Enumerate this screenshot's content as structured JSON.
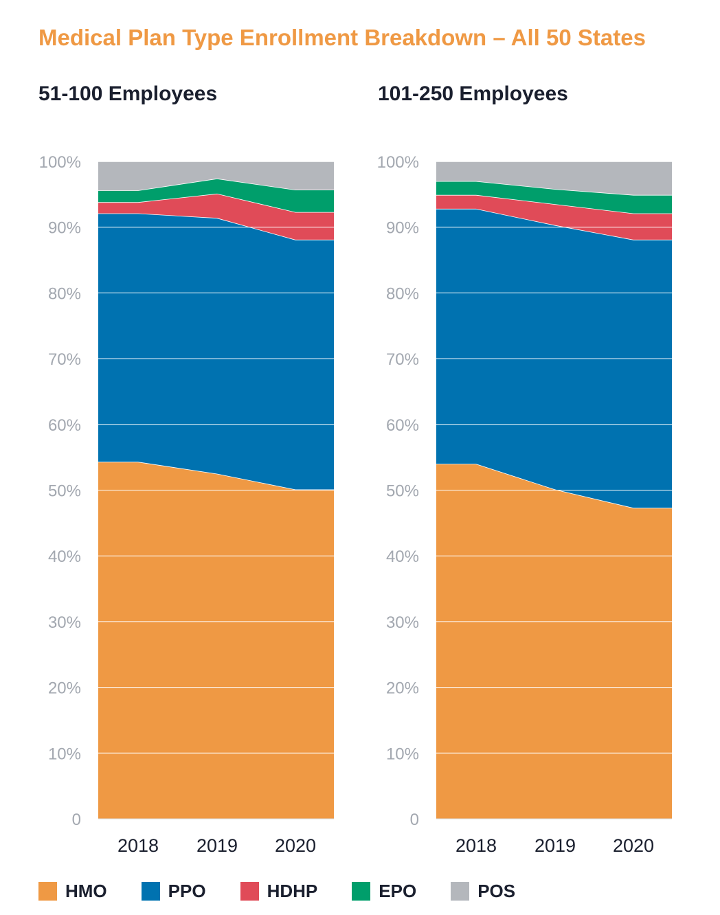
{
  "title": "Medical Plan Type Enrollment Breakdown – All 50 States",
  "colors": {
    "title": "#ef9944",
    "HMO": "#ef9944",
    "PPO": "#0072b0",
    "HDHP": "#e04b58",
    "EPO": "#009e6b",
    "POS": "#b4b7bc",
    "tick": "#a3a8b0",
    "grid": "#ffffff"
  },
  "legend": [
    {
      "name": "HMO",
      "color": "#ef9944"
    },
    {
      "name": "PPO",
      "color": "#0072b0"
    },
    {
      "name": "HDHP",
      "color": "#e04b58"
    },
    {
      "name": "EPO",
      "color": "#009e6b"
    },
    {
      "name": "POS",
      "color": "#b4b7bc"
    }
  ],
  "chart_data": [
    {
      "type": "area",
      "stacked": true,
      "title": "51-100 Employees",
      "x": [
        "2018",
        "2019",
        "2020"
      ],
      "y_ticks": [
        "0",
        "10%",
        "20%",
        "30%",
        "40%",
        "50%",
        "60%",
        "70%",
        "80%",
        "90%",
        "100%"
      ],
      "ylim": [
        0,
        100
      ],
      "series": [
        {
          "name": "HMO",
          "values": [
            54.3,
            52.5,
            50.1
          ]
        },
        {
          "name": "PPO",
          "values": [
            37.8,
            38.9,
            38.0
          ]
        },
        {
          "name": "HDHP",
          "values": [
            1.7,
            3.7,
            4.2
          ]
        },
        {
          "name": "EPO",
          "values": [
            1.8,
            2.3,
            3.4
          ]
        },
        {
          "name": "POS",
          "values": [
            4.4,
            2.6,
            4.3
          ]
        }
      ]
    },
    {
      "type": "area",
      "stacked": true,
      "title": "101-250 Employees",
      "x": [
        "2018",
        "2019",
        "2020"
      ],
      "y_ticks": [
        "0",
        "10%",
        "20%",
        "30%",
        "40%",
        "50%",
        "60%",
        "70%",
        "80%",
        "90%",
        "100%"
      ],
      "ylim": [
        0,
        100
      ],
      "series": [
        {
          "name": "HMO",
          "values": [
            54.0,
            50.1,
            47.3
          ]
        },
        {
          "name": "PPO",
          "values": [
            38.8,
            40.2,
            40.8
          ]
        },
        {
          "name": "HDHP",
          "values": [
            2.1,
            3.2,
            4.0
          ]
        },
        {
          "name": "EPO",
          "values": [
            2.1,
            2.3,
            2.8
          ]
        },
        {
          "name": "POS",
          "values": [
            3.0,
            4.2,
            5.1
          ]
        }
      ]
    }
  ]
}
